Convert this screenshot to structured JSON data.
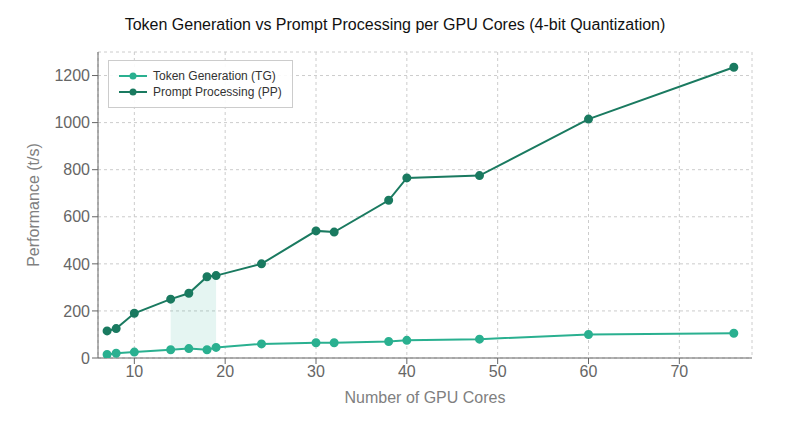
{
  "chart_data": {
    "type": "line",
    "title": "Token Generation vs Prompt Processing per GPU Cores (4-bit Quantization)",
    "x_label": "Number of GPU Cores",
    "y_label": "Performance (t/s)",
    "x": [
      7,
      8,
      10,
      14,
      16,
      18,
      19,
      24,
      30,
      32,
      38,
      40,
      48,
      60,
      76
    ],
    "series": [
      {
        "name": "Token Generation (TG)",
        "color": "#2ab090",
        "marker": "o",
        "values": [
          15,
          20,
          25,
          35,
          40,
          35,
          45,
          60,
          65,
          65,
          70,
          75,
          80,
          100,
          105
        ]
      },
      {
        "name": "Prompt Processing (PP)",
        "color": "#1a7a60",
        "marker": "o",
        "values": [
          115,
          125,
          190,
          250,
          275,
          345,
          350,
          400,
          540,
          535,
          670,
          765,
          775,
          1015,
          1235
        ]
      }
    ],
    "band": {
      "color": "#2ab090",
      "x": [
        14,
        16,
        18,
        19
      ],
      "lower": [
        35,
        40,
        35,
        45
      ],
      "upper": [
        250,
        275,
        345,
        350
      ]
    },
    "xlim": [
      6,
      78
    ],
    "xticks": [
      10,
      20,
      30,
      40,
      50,
      60,
      70
    ],
    "ylim": [
      0,
      1300
    ],
    "yticks": [
      0,
      200,
      400,
      600,
      800,
      1000,
      1200
    ],
    "grid": true,
    "legend": "upper left"
  }
}
